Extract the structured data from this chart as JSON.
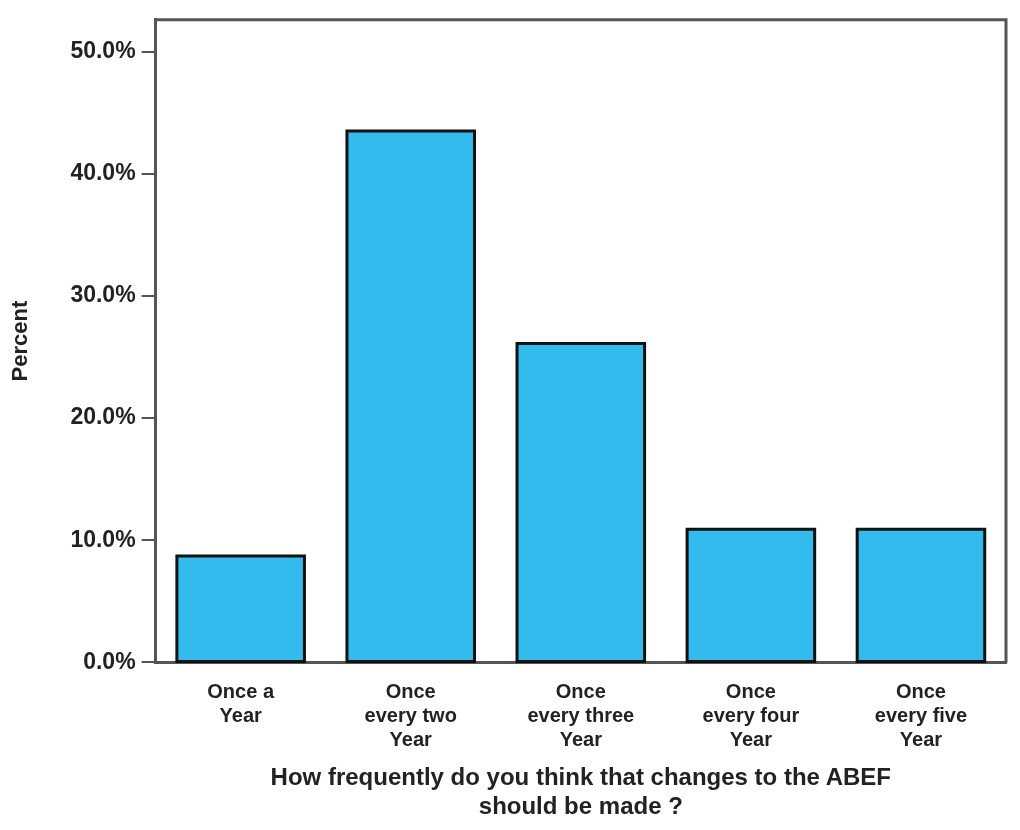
{
  "chart_data": {
    "type": "bar",
    "xlabel": "How frequently do you think that changes to the ABEF should be made ?",
    "ylabel": "Percent",
    "categories": [
      "Once a Year",
      "Once every two Year",
      "Once every three Year",
      "Once every four Year",
      "Once every five Year"
    ],
    "values": [
      8.7,
      43.5,
      26.1,
      10.9,
      10.9
    ],
    "color": "#33bbee",
    "ylim": [
      0,
      52.6
    ],
    "yticks": [
      {
        "value": 0,
        "label": "0.0%"
      },
      {
        "value": 10,
        "label": "10.0%"
      },
      {
        "value": 20,
        "label": "20.0%"
      },
      {
        "value": 30,
        "label": "30.0%"
      },
      {
        "value": 40,
        "label": "40.0%"
      },
      {
        "value": 50,
        "label": "50.0%"
      }
    ],
    "grid": false,
    "legend": false
  }
}
